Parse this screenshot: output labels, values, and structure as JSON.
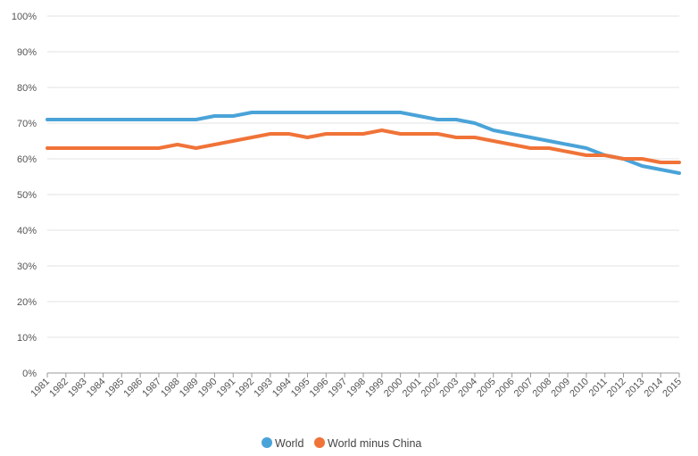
{
  "chart_data": {
    "type": "line",
    "x": [
      "1981",
      "1982",
      "1983",
      "1984",
      "1985",
      "1986",
      "1987",
      "1988",
      "1989",
      "1990",
      "1991",
      "1992",
      "1993",
      "1994",
      "1995",
      "1996",
      "1997",
      "1998",
      "1999",
      "2000",
      "2001",
      "2002",
      "2003",
      "2004",
      "2005",
      "2006",
      "2007",
      "2008",
      "2009",
      "2010",
      "2011",
      "2012",
      "2013",
      "2014",
      "2015"
    ],
    "series": [
      {
        "name": "World",
        "color": "#4aa3d8",
        "values": [
          71,
          71,
          71,
          71,
          71,
          71,
          71,
          71,
          71,
          72,
          72,
          73,
          73,
          73,
          73,
          73,
          73,
          73,
          73,
          73,
          72,
          71,
          71,
          70,
          68,
          67,
          66,
          65,
          64,
          63,
          61,
          60,
          58,
          57,
          56
        ]
      },
      {
        "name": "World minus China",
        "color": "#f07338",
        "values": [
          63,
          63,
          63,
          63,
          63,
          63,
          63,
          64,
          63,
          64,
          65,
          66,
          67,
          67,
          66,
          67,
          67,
          67,
          68,
          67,
          67,
          67,
          66,
          66,
          65,
          64,
          63,
          63,
          62,
          61,
          61,
          60,
          60,
          59,
          59
        ]
      }
    ],
    "y_ticks": [
      "0%",
      "10%",
      "20%",
      "30%",
      "40%",
      "50%",
      "60%",
      "70%",
      "80%",
      "90%",
      "100%"
    ],
    "ylim": [
      0,
      100
    ],
    "grid": true,
    "legend": "bottom-center"
  }
}
